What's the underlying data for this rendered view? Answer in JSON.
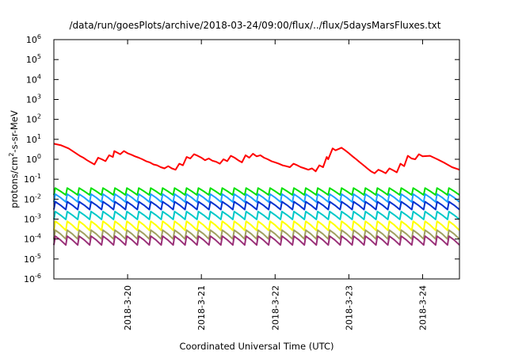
{
  "chart_data": {
    "type": "line",
    "title": "/data/run/goesPlots/archive/2018-03-24/09:00/flux/../flux/5daysMarsFluxes.txt",
    "xlabel": "Coordinated Universal Time (UTC)",
    "ylabel": {
      "base": "protons/cm",
      "sup": "2",
      "rest": "-s-sr-MeV"
    },
    "yscale": "log",
    "ylim": [
      1e-06,
      1000000.0
    ],
    "xlim": [
      0,
      5.5
    ],
    "x_units": "days after 2018-03-19 00:00 UTC",
    "y_ticks": [
      {
        "value": 1e-06,
        "base": "10",
        "exp": "-6"
      },
      {
        "value": 1e-05,
        "base": "10",
        "exp": "-5"
      },
      {
        "value": 0.0001,
        "base": "10",
        "exp": "-4"
      },
      {
        "value": 0.001,
        "base": "10",
        "exp": "-3"
      },
      {
        "value": 0.01,
        "base": "10",
        "exp": "-2"
      },
      {
        "value": 0.1,
        "base": "10",
        "exp": "-1"
      },
      {
        "value": 1,
        "base": "10",
        "exp": "0"
      },
      {
        "value": 10,
        "base": "10",
        "exp": "1"
      },
      {
        "value": 100,
        "base": "10",
        "exp": "2"
      },
      {
        "value": 1000,
        "base": "10",
        "exp": "3"
      },
      {
        "value": 10000,
        "base": "10",
        "exp": "4"
      },
      {
        "value": 100000,
        "base": "10",
        "exp": "5"
      },
      {
        "value": 1000000,
        "base": "10",
        "exp": "6"
      }
    ],
    "x_ticks": [
      {
        "value": 1,
        "label": "2018-3-20"
      },
      {
        "value": 2,
        "label": "2018-3-21"
      },
      {
        "value": 3,
        "label": "2018-3-22"
      },
      {
        "value": 4,
        "label": "2018-3-23"
      },
      {
        "value": 5,
        "label": "2018-3-24"
      }
    ],
    "grid": false,
    "legend": "none",
    "series": [
      {
        "color": "#ff0000",
        "x": [
          0,
          0.1,
          0.2,
          0.3,
          0.35,
          0.4,
          0.45,
          0.5,
          0.55,
          0.6,
          0.65,
          0.7,
          0.75,
          0.8,
          0.82,
          0.9,
          0.95,
          1.0,
          1.05,
          1.1,
          1.15,
          1.2,
          1.25,
          1.3,
          1.35,
          1.4,
          1.45,
          1.5,
          1.55,
          1.6,
          1.65,
          1.7,
          1.75,
          1.8,
          1.85,
          1.9,
          1.95,
          2.0,
          2.05,
          2.1,
          2.15,
          2.2,
          2.25,
          2.3,
          2.35,
          2.4,
          2.45,
          2.5,
          2.55,
          2.6,
          2.65,
          2.7,
          2.75,
          2.8,
          2.85,
          2.9,
          2.95,
          3.0,
          3.05,
          3.1,
          3.15,
          3.2,
          3.25,
          3.3,
          3.35,
          3.4,
          3.45,
          3.5,
          3.55,
          3.6,
          3.65,
          3.7,
          3.72,
          3.78,
          3.82,
          3.9,
          3.95,
          4.0,
          4.05,
          4.1,
          4.15,
          4.2,
          4.25,
          4.3,
          4.35,
          4.4,
          4.45,
          4.5,
          4.55,
          4.6,
          4.65,
          4.7,
          4.75,
          4.8,
          4.85,
          4.9,
          4.95,
          5.0,
          5.1,
          5.2,
          5.3,
          5.4,
          5.5
        ],
        "y": [
          6,
          5,
          3.5,
          2,
          1.5,
          1.2,
          0.9,
          0.7,
          0.55,
          1.2,
          1.0,
          0.8,
          1.6,
          1.3,
          2.6,
          1.8,
          2.6,
          2.0,
          1.7,
          1.4,
          1.2,
          1.0,
          0.8,
          0.7,
          0.55,
          0.5,
          0.4,
          0.35,
          0.45,
          0.35,
          0.3,
          0.6,
          0.5,
          1.3,
          1.1,
          1.8,
          1.5,
          1.2,
          0.9,
          1.1,
          0.85,
          0.75,
          0.6,
          1.0,
          0.8,
          1.5,
          1.2,
          0.9,
          0.7,
          1.6,
          1.2,
          1.9,
          1.4,
          1.6,
          1.2,
          1.0,
          0.8,
          0.7,
          0.6,
          0.5,
          0.45,
          0.4,
          0.6,
          0.5,
          0.4,
          0.35,
          0.3,
          0.35,
          0.25,
          0.5,
          0.4,
          1.3,
          1.0,
          3.5,
          2.8,
          3.8,
          2.8,
          2.0,
          1.4,
          1.0,
          0.7,
          0.5,
          0.35,
          0.25,
          0.2,
          0.3,
          0.25,
          0.2,
          0.35,
          0.28,
          0.22,
          0.6,
          0.45,
          1.5,
          1.1,
          1.0,
          1.8,
          1.4,
          1.5,
          1.0,
          0.65,
          0.4,
          0.3
        ]
      },
      {
        "color": "#00e000",
        "x": [
          0,
          5.5
        ],
        "y": [
          0.025,
          0.025
        ],
        "amp": 0.011,
        "n": 34
      },
      {
        "color": "#20a0ff",
        "x": [
          0,
          5.5
        ],
        "y": [
          0.012,
          0.012
        ],
        "amp": 0.006,
        "n": 34
      },
      {
        "color": "#0030d0",
        "x": [
          0,
          5.5
        ],
        "y": [
          0.005,
          0.005
        ],
        "amp": 0.0025,
        "n": 34
      },
      {
        "color": "#00c8c8",
        "x": [
          0,
          5.5
        ],
        "y": [
          0.0016,
          0.0016
        ],
        "amp": 0.0008,
        "n": 34
      },
      {
        "color": "#ffff00",
        "x": [
          0,
          5.5
        ],
        "y": [
          0.0005,
          0.0005
        ],
        "amp": 0.00028,
        "n": 34
      },
      {
        "color": "#a0a060",
        "x": [
          0,
          5.5
        ],
        "y": [
          0.00018,
          0.00018
        ],
        "amp": 0.0001,
        "n": 34
      },
      {
        "color": "#9a3078",
        "x": [
          0,
          5.5
        ],
        "y": [
          9e-05,
          9e-05
        ],
        "amp": 5e-05,
        "n": 34
      }
    ]
  }
}
